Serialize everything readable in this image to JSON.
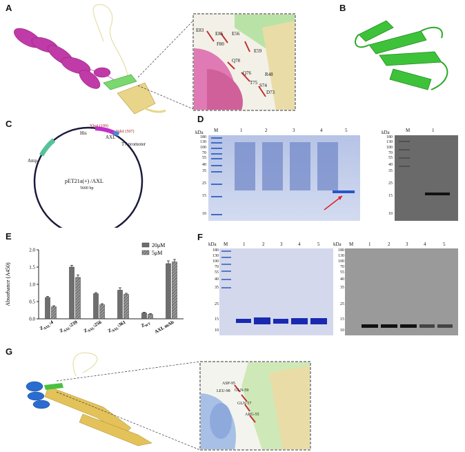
{
  "panels": {
    "A": {
      "label": "A",
      "residues": [
        "E83",
        "E85",
        "E56",
        "F80",
        "E59",
        "Q78",
        "Q76",
        "R48",
        "T75",
        "S74",
        "D73"
      ]
    },
    "B": {
      "label": "B"
    },
    "C": {
      "label": "C",
      "features": [
        "His",
        "XhoI (199)",
        "AXL",
        "NdeI (507)",
        "T7 promoter",
        "Amp"
      ],
      "plasmid_name": "pET21a(+) /AXL",
      "plasmid_size": "5600 bp"
    },
    "D": {
      "label": "D",
      "kda_label": "kDa",
      "markers_left": [
        "180",
        "130",
        "100",
        "70",
        "55",
        "40",
        "35",
        "25",
        "15",
        "10"
      ],
      "lanes_left": [
        "M",
        "1",
        "2",
        "3",
        "4",
        "5"
      ],
      "markers_right": [
        "180",
        "130",
        "100",
        "70",
        "55",
        "40",
        "35",
        "25",
        "15",
        "10"
      ],
      "lanes_right": [
        "M",
        "1"
      ]
    },
    "E": {
      "label": "E",
      "ylabel": "Absorbance (A450)",
      "yticks": [
        "0.0",
        "0.5",
        "1.0",
        "1.5",
        "2.0"
      ],
      "legend": [
        "20μM",
        "5μM"
      ]
    },
    "F": {
      "label": "F",
      "kda_label": "kDa",
      "markers": [
        "180",
        "130",
        "100",
        "70",
        "55",
        "40",
        "35",
        "25",
        "15",
        "10"
      ],
      "lanes": [
        "M",
        "1",
        "2",
        "3",
        "4",
        "5"
      ]
    },
    "G": {
      "label": "G",
      "residues": [
        "ASP-95",
        "LEU-98",
        "GLN-59",
        "GLN-57",
        "ARG-55"
      ]
    }
  },
  "chart_data": {
    "type": "bar",
    "categories": [
      "Z_AXL:4",
      "Z_AXL:239",
      "Z_AXL:256",
      "Z_AXL:361",
      "Z_WT",
      "AXL mAb"
    ],
    "category_labels": [
      {
        "main": "Z",
        "sub": "AXL",
        "suffix": ":4"
      },
      {
        "main": "Z",
        "sub": "AXL",
        "suffix": ":239"
      },
      {
        "main": "Z",
        "sub": "AXL",
        "suffix": ":256"
      },
      {
        "main": "Z",
        "sub": "AXL",
        "suffix": ":361"
      },
      {
        "main": "Z",
        "sub": "WT",
        "suffix": ""
      },
      {
        "main": "AXL mAb",
        "sub": "",
        "suffix": ""
      }
    ],
    "series": [
      {
        "name": "20μM",
        "values": [
          0.62,
          1.5,
          0.73,
          0.83,
          0.17,
          1.6
        ],
        "errors": [
          0.03,
          0.05,
          0.03,
          0.07,
          0.02,
          0.08
        ]
      },
      {
        "name": "5μM",
        "values": [
          0.35,
          1.2,
          0.41,
          0.71,
          0.13,
          1.65
        ],
        "errors": [
          0.03,
          0.07,
          0.03,
          0.03,
          0.02,
          0.07
        ]
      }
    ],
    "ylabel": "Absorbance (A450)",
    "ylim": [
      0,
      2.0
    ],
    "legend_position": "top-right",
    "colors": {
      "s1": "#6e6e6e",
      "s2": "#9a9a9a"
    }
  }
}
